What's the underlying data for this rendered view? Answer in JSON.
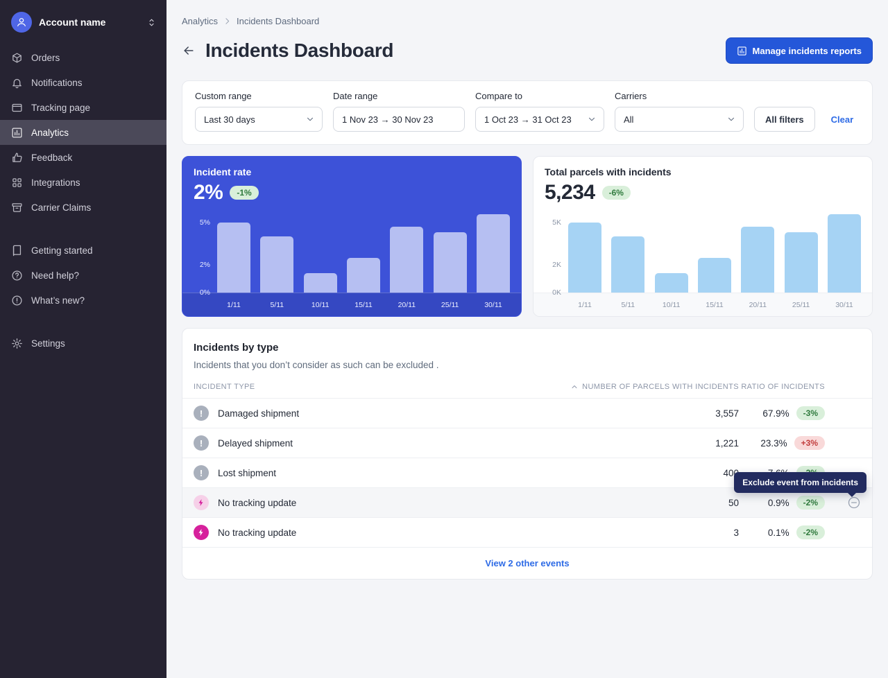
{
  "sidebar": {
    "account_name": "Account name",
    "items": [
      {
        "label": "Orders",
        "icon": "orders-icon"
      },
      {
        "label": "Notifications",
        "icon": "bell-icon"
      },
      {
        "label": "Tracking page",
        "icon": "tracking-page-icon"
      },
      {
        "label": "Analytics",
        "icon": "analytics-icon",
        "active": true
      },
      {
        "label": "Feedback",
        "icon": "feedback-icon"
      },
      {
        "label": "Integrations",
        "icon": "integrations-icon"
      },
      {
        "label": "Carrier Claims",
        "icon": "carrier-claims-icon"
      }
    ],
    "secondary_items": [
      {
        "label": "Getting started",
        "icon": "getting-started-icon"
      },
      {
        "label": "Need help?",
        "icon": "help-icon"
      },
      {
        "label": "What’s new?",
        "icon": "whats-new-icon"
      }
    ],
    "settings_items": [
      {
        "label": "Settings",
        "icon": "settings-icon"
      }
    ]
  },
  "breadcrumb": {
    "parent": "Analytics",
    "current": "Incidents Dashboard"
  },
  "header": {
    "title": "Incidents Dashboard",
    "manage_button_label": "Manage incidents reports"
  },
  "filters": {
    "custom_range_label": "Custom range",
    "custom_range_value": "Last 30 days",
    "date_range_label": "Date range",
    "date_range_value": "1 Nov 23 → 30 Nov 23",
    "compare_to_label": "Compare to",
    "compare_to_value": "1 Oct 23 → 31 Oct 23",
    "carriers_label": "Carriers",
    "carriers_value": "All",
    "all_filters_label": "All filters",
    "clear_label": "Clear"
  },
  "chart_data": [
    {
      "type": "bar",
      "title": "Incident rate",
      "metric": "2%",
      "delta": "-1%",
      "delta_color": "green",
      "categories": [
        "1/11",
        "5/11",
        "10/11",
        "15/11",
        "20/11",
        "25/11",
        "30/11"
      ],
      "values": [
        5.0,
        4.0,
        1.4,
        2.5,
        4.7,
        4.3,
        5.6
      ],
      "unit": "%",
      "ymax": 5.8,
      "yticks": [
        {
          "label": "5%",
          "value": 5
        },
        {
          "label": "2%",
          "value": 2
        },
        {
          "label": "0%",
          "value": 0
        }
      ],
      "legend": "none",
      "grid": false
    },
    {
      "type": "bar",
      "title": "Total parcels with incidents",
      "metric": "5,234",
      "delta": "-6%",
      "delta_color": "green",
      "categories": [
        "1/11",
        "5/11",
        "10/11",
        "15/11",
        "20/11",
        "25/11",
        "30/11"
      ],
      "values": [
        5000,
        4000,
        1400,
        2500,
        4700,
        4300,
        5600
      ],
      "unit": "parcels",
      "ymax": 5800,
      "yticks": [
        {
          "label": "5K",
          "value": 5000
        },
        {
          "label": "2K",
          "value": 2000
        },
        {
          "label": "0K",
          "value": 0
        }
      ],
      "legend": "none",
      "grid": false
    }
  ],
  "incidents_table": {
    "title": "Incidents by type",
    "subtitle": "Incidents that you don’t consider as such can be excluded .",
    "columns": {
      "type": "INCIDENT TYPE",
      "parcels": "NUMBER OF PARCELS WITH INCIDENTS",
      "ratio": "RATIO OF INCIDENTS"
    },
    "sort": {
      "column": "parcels",
      "direction": "asc"
    },
    "rows": [
      {
        "icon": "exclamation-icon",
        "icon_style": "gray",
        "type": "Damaged shipment",
        "parcels": "3,557",
        "ratio": "67.9%",
        "delta": "-3%",
        "delta_color": "green"
      },
      {
        "icon": "exclamation-icon",
        "icon_style": "gray",
        "type": "Delayed shipment",
        "parcels": "1,221",
        "ratio": "23.3%",
        "delta": "+3%",
        "delta_color": "red"
      },
      {
        "icon": "exclamation-icon",
        "icon_style": "gray",
        "type": "Lost shipment",
        "parcels": "400",
        "ratio": "7.6%",
        "delta": "-2%",
        "delta_color": "green"
      },
      {
        "icon": "bolt-icon",
        "icon_style": "pink-light",
        "type": "No tracking update",
        "parcels": "50",
        "ratio": "0.9%",
        "delta": "-2%",
        "delta_color": "green",
        "highlighted": true
      },
      {
        "icon": "bolt-icon",
        "icon_style": "pink",
        "type": "No tracking update",
        "parcels": "3",
        "ratio": "0.1%",
        "delta": "-2%",
        "delta_color": "green"
      }
    ],
    "tooltip": "Exclude event from incidents",
    "view_more_label": "View 2 other events"
  },
  "colors": {
    "accent_blue": "#2457d9",
    "chart_card_blue": "#3d52d8",
    "bar_periwinkle": "#b6bff2",
    "bar_light_blue": "#a6d3f4",
    "badge_green_bg": "#d9efda",
    "badge_green_text": "#2f7a3d",
    "badge_red_bg": "#f9d9d9",
    "badge_red_text": "#c23d3d",
    "sidebar_bg": "#262332",
    "magenta": "#d6219c",
    "tooltip_bg": "#222b5f"
  }
}
